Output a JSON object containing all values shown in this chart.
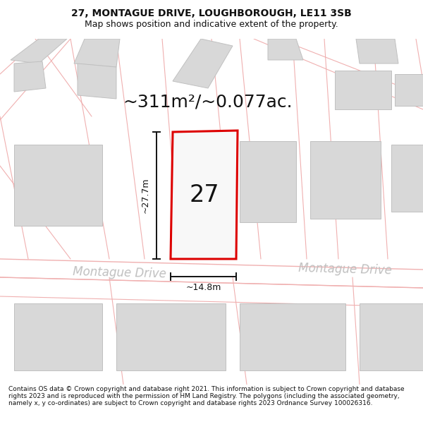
{
  "title_line1": "27, MONTAGUE DRIVE, LOUGHBOROUGH, LE11 3SB",
  "title_line2": "Map shows position and indicative extent of the property.",
  "area_label": "~311m²/~0.077ac.",
  "number_label": "27",
  "dim_height": "~27.7m",
  "dim_width": "~14.8m",
  "road_label_left": "Montague Drive",
  "road_label_right": "Montague Drive",
  "footer": "Contains OS data © Crown copyright and database right 2021. This information is subject to Crown copyright and database rights 2023 and is reproduced with the permission of HM Land Registry. The polygons (including the associated geometry, namely x, y co-ordinates) are subject to Crown copyright and database rights 2023 Ordnance Survey 100026316.",
  "bg_color": "#ffffff",
  "map_bg": "#ffffff",
  "plot_fill": "#f8f8f8",
  "plot_edge": "#dd0000",
  "building_fill": "#d8d8d8",
  "building_edge": "#c0c0c0",
  "road_line_color": "#f0b0b0",
  "dim_line_color": "#111111",
  "text_color": "#111111",
  "road_text_color": "#c0c0c0",
  "title_fontsize": 10,
  "subtitle_fontsize": 9,
  "area_fontsize": 18,
  "number_fontsize": 24,
  "dim_fontsize": 9,
  "road_fontsize": 12,
  "footer_fontsize": 6.5
}
